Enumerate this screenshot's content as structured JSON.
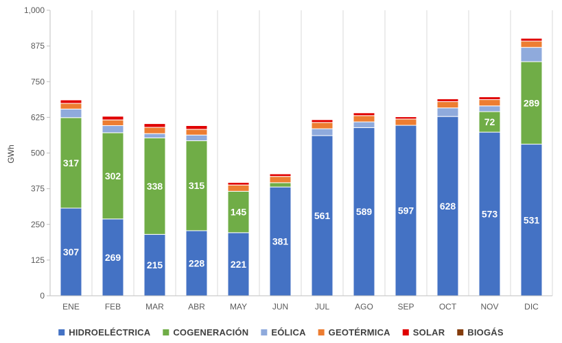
{
  "chart_data": {
    "type": "bar",
    "stacked": true,
    "ylabel": "GWh",
    "ylim": [
      0,
      1000
    ],
    "yticks": [
      "0",
      "125",
      "250",
      "375",
      "500",
      "625",
      "750",
      "875",
      "1,000"
    ],
    "grid": "vertical",
    "legend_position": "bottom",
    "categories": [
      "ENE",
      "FEB",
      "MAR",
      "ABR",
      "MAY",
      "JUN",
      "JUL",
      "AGO",
      "SEP",
      "OCT",
      "NOV",
      "DIC"
    ],
    "series": [
      {
        "name": "HIDROELÉCTRICA",
        "color": "#4472C4",
        "values": [
          307,
          269,
          215,
          228,
          221,
          381,
          561,
          589,
          597,
          628,
          573,
          531
        ],
        "labels": [
          "307",
          "269",
          "215",
          "228",
          "221",
          "381",
          "561",
          "589",
          "597",
          "628",
          "573",
          "531"
        ]
      },
      {
        "name": "COGENERACIÓN",
        "color": "#70AD47",
        "values": [
          317,
          302,
          338,
          315,
          145,
          15,
          0,
          0,
          0,
          0,
          72,
          289
        ],
        "labels": [
          "317",
          "302",
          "338",
          "315",
          "145",
          "",
          "",
          "",
          "",
          "",
          "72",
          "289"
        ]
      },
      {
        "name": "EÓLICA",
        "color": "#8FAADC",
        "values": [
          30,
          25,
          15,
          20,
          0,
          0,
          24,
          20,
          0,
          30,
          20,
          50
        ],
        "labels": [
          "",
          "",
          "",
          "",
          "",
          "",
          "",
          "",
          "",
          "",
          "",
          ""
        ]
      },
      {
        "name": "GEOTÉRMICA",
        "color": "#ED7D31",
        "values": [
          20,
          20,
          22,
          20,
          22,
          22,
          22,
          22,
          22,
          22,
          22,
          22
        ],
        "labels": [
          "",
          "",
          "",
          "",
          "",
          "",
          "",
          "",
          "",
          "",
          "",
          ""
        ]
      },
      {
        "name": "SOLAR",
        "color": "#E00000",
        "values": [
          12,
          13,
          13,
          13,
          9,
          9,
          10,
          10,
          8,
          10,
          10,
          10
        ],
        "labels": [
          "",
          "",
          "",
          "",
          "",
          "",
          "",
          "",
          "",
          "",
          "",
          ""
        ]
      },
      {
        "name": "BIOGÁS",
        "color": "#843C0C",
        "values": [
          1,
          1,
          1,
          1,
          1,
          1,
          1,
          1,
          1,
          1,
          1,
          1
        ],
        "labels": [
          "",
          "",
          "",
          "",
          "",
          "",
          "",
          "",
          "",
          "",
          "",
          ""
        ]
      }
    ]
  }
}
